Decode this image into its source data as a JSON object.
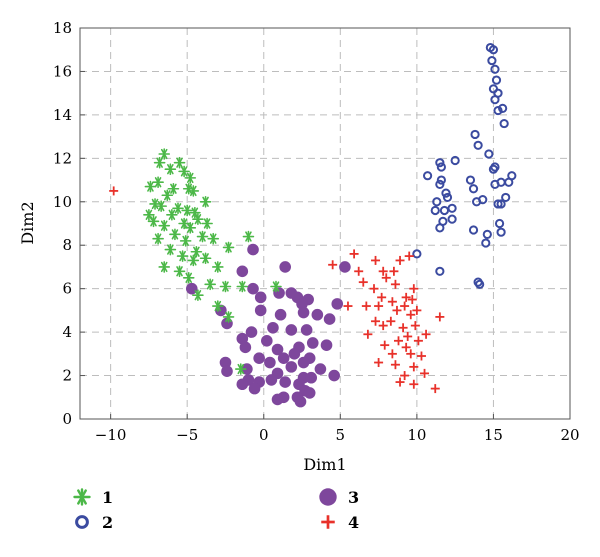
{
  "chart_data": {
    "type": "scatter",
    "xlabel": "Dim1",
    "ylabel": "Dim2",
    "xlim": [
      -12,
      20
    ],
    "ylim": [
      0,
      18
    ],
    "xticks": [
      -10,
      -5,
      0,
      5,
      10,
      15,
      20
    ],
    "yticks": [
      0,
      2,
      4,
      6,
      8,
      10,
      12,
      14,
      16,
      18
    ],
    "grid": true,
    "legend_position": "bottom",
    "series": [
      {
        "name": "1",
        "marker": "asterisk",
        "color": "#4CB848",
        "points": [
          [
            -6.5,
            12.2
          ],
          [
            -6.8,
            11.8
          ],
          [
            -5.5,
            11.8
          ],
          [
            -6.1,
            11.5
          ],
          [
            -5.2,
            11.4
          ],
          [
            -4.8,
            11.1
          ],
          [
            -6.9,
            10.9
          ],
          [
            -7.4,
            10.7
          ],
          [
            -5.9,
            10.6
          ],
          [
            -4.9,
            10.6
          ],
          [
            -4.6,
            10.5
          ],
          [
            -6.3,
            10.3
          ],
          [
            -3.8,
            10.0
          ],
          [
            -7.1,
            9.9
          ],
          [
            -6.7,
            9.8
          ],
          [
            -5.6,
            9.7
          ],
          [
            -5.0,
            9.6
          ],
          [
            -4.5,
            9.5
          ],
          [
            -7.5,
            9.4
          ],
          [
            -6.0,
            9.4
          ],
          [
            -4.3,
            9.2
          ],
          [
            -7.2,
            9.1
          ],
          [
            -5.2,
            9.0
          ],
          [
            -3.7,
            9.0
          ],
          [
            -6.5,
            8.9
          ],
          [
            -4.8,
            8.8
          ],
          [
            -5.8,
            8.5
          ],
          [
            -4.0,
            8.4
          ],
          [
            -6.9,
            8.3
          ],
          [
            -3.3,
            8.3
          ],
          [
            -5.1,
            8.2
          ],
          [
            -2.3,
            7.9
          ],
          [
            -6.1,
            7.8
          ],
          [
            -4.4,
            7.7
          ],
          [
            -5.3,
            7.5
          ],
          [
            -3.8,
            7.4
          ],
          [
            -4.6,
            7.3
          ],
          [
            -6.5,
            7.0
          ],
          [
            -3.0,
            7.0
          ],
          [
            -5.5,
            6.8
          ],
          [
            -4.9,
            6.5
          ],
          [
            -3.5,
            6.2
          ],
          [
            -2.5,
            6.1
          ],
          [
            -1.4,
            6.1
          ],
          [
            -4.3,
            5.7
          ],
          [
            -3.0,
            5.2
          ],
          [
            -2.3,
            4.7
          ],
          [
            -1.0,
            8.4
          ],
          [
            -1.5,
            2.3
          ],
          [
            0.8,
            6.1
          ]
        ]
      },
      {
        "name": "2",
        "marker": "circle-open",
        "color": "#3B4BA0",
        "points": [
          [
            14.8,
            17.1
          ],
          [
            15.0,
            17.0
          ],
          [
            14.9,
            16.5
          ],
          [
            15.1,
            16.1
          ],
          [
            15.2,
            15.6
          ],
          [
            15.0,
            15.2
          ],
          [
            15.3,
            15.0
          ],
          [
            15.1,
            14.7
          ],
          [
            15.6,
            14.3
          ],
          [
            15.3,
            14.2
          ],
          [
            15.7,
            13.6
          ],
          [
            13.8,
            13.1
          ],
          [
            14.0,
            12.6
          ],
          [
            14.7,
            12.2
          ],
          [
            12.5,
            11.9
          ],
          [
            11.6,
            11.6
          ],
          [
            11.5,
            11.8
          ],
          [
            15.0,
            11.5
          ],
          [
            15.1,
            11.6
          ],
          [
            10.7,
            11.2
          ],
          [
            11.6,
            11.0
          ],
          [
            13.5,
            11.0
          ],
          [
            16.2,
            11.2
          ],
          [
            11.5,
            10.8
          ],
          [
            15.5,
            10.9
          ],
          [
            16.0,
            10.9
          ],
          [
            11.9,
            10.4
          ],
          [
            15.1,
            10.8
          ],
          [
            13.7,
            10.6
          ],
          [
            12.0,
            10.2
          ],
          [
            11.3,
            10.0
          ],
          [
            14.3,
            10.1
          ],
          [
            15.8,
            10.2
          ],
          [
            11.8,
            9.6
          ],
          [
            13.9,
            10.0
          ],
          [
            15.3,
            9.9
          ],
          [
            11.2,
            9.6
          ],
          [
            12.3,
            9.7
          ],
          [
            15.5,
            9.9
          ],
          [
            11.7,
            9.1
          ],
          [
            12.3,
            9.2
          ],
          [
            15.4,
            9.0
          ],
          [
            11.5,
            8.8
          ],
          [
            13.7,
            8.7
          ],
          [
            14.6,
            8.5
          ],
          [
            15.5,
            8.6
          ],
          [
            14.5,
            8.1
          ],
          [
            10.0,
            7.6
          ],
          [
            11.5,
            6.8
          ],
          [
            14.0,
            6.3
          ],
          [
            14.1,
            6.2
          ]
        ]
      },
      {
        "name": "3",
        "marker": "circle-filled",
        "color": "#7E479C",
        "points": [
          [
            -0.7,
            7.8
          ],
          [
            1.4,
            7.0
          ],
          [
            -1.4,
            6.8
          ],
          [
            -4.7,
            6.0
          ],
          [
            -0.7,
            6.0
          ],
          [
            1.0,
            5.8
          ],
          [
            -0.2,
            5.6
          ],
          [
            2.2,
            5.6
          ],
          [
            1.8,
            5.8
          ],
          [
            2.9,
            5.5
          ],
          [
            2.5,
            5.3
          ],
          [
            4.8,
            5.3
          ],
          [
            5.3,
            7.0
          ],
          [
            -2.8,
            5.0
          ],
          [
            -0.2,
            5.0
          ],
          [
            1.1,
            4.8
          ],
          [
            2.6,
            4.9
          ],
          [
            3.5,
            4.8
          ],
          [
            4.3,
            4.6
          ],
          [
            -2.4,
            4.4
          ],
          [
            0.6,
            4.2
          ],
          [
            -0.8,
            4.0
          ],
          [
            1.8,
            4.1
          ],
          [
            2.8,
            4.1
          ],
          [
            -1.4,
            3.7
          ],
          [
            0.2,
            3.6
          ],
          [
            2.3,
            3.3
          ],
          [
            3.2,
            3.5
          ],
          [
            -1.2,
            3.3
          ],
          [
            0.9,
            3.2
          ],
          [
            2.0,
            3.0
          ],
          [
            4.1,
            3.4
          ],
          [
            -0.3,
            2.8
          ],
          [
            1.3,
            2.8
          ],
          [
            3.0,
            2.8
          ],
          [
            0.4,
            2.6
          ],
          [
            2.6,
            2.6
          ],
          [
            -2.5,
            2.6
          ],
          [
            1.8,
            2.4
          ],
          [
            3.7,
            2.3
          ],
          [
            -1.1,
            2.3
          ],
          [
            0.9,
            2.1
          ],
          [
            4.6,
            2.0
          ],
          [
            2.6,
            1.9
          ],
          [
            3.1,
            1.9
          ],
          [
            -1.0,
            1.8
          ],
          [
            0.5,
            1.8
          ],
          [
            -0.3,
            1.7
          ],
          [
            1.4,
            1.7
          ],
          [
            2.3,
            1.6
          ],
          [
            -1.4,
            1.6
          ],
          [
            -0.6,
            1.4
          ],
          [
            2.7,
            1.3
          ],
          [
            1.3,
            1.0
          ],
          [
            2.2,
            1.0
          ],
          [
            0.9,
            0.9
          ],
          [
            2.4,
            0.8
          ],
          [
            3.0,
            1.2
          ],
          [
            -2.4,
            2.2
          ]
        ]
      },
      {
        "name": "4",
        "marker": "plus",
        "color": "#E8312A",
        "points": [
          [
            -9.8,
            10.5
          ],
          [
            9.5,
            7.5
          ],
          [
            8.9,
            7.3
          ],
          [
            5.9,
            7.6
          ],
          [
            7.3,
            7.3
          ],
          [
            4.5,
            7.1
          ],
          [
            6.2,
            6.8
          ],
          [
            7.8,
            6.8
          ],
          [
            8.5,
            6.8
          ],
          [
            8.0,
            6.5
          ],
          [
            6.5,
            6.3
          ],
          [
            7.2,
            6.0
          ],
          [
            8.6,
            6.2
          ],
          [
            9.8,
            6.0
          ],
          [
            7.7,
            5.6
          ],
          [
            8.4,
            5.4
          ],
          [
            9.3,
            5.6
          ],
          [
            9.7,
            5.5
          ],
          [
            5.5,
            5.2
          ],
          [
            6.7,
            5.2
          ],
          [
            7.5,
            5.2
          ],
          [
            9.2,
            5.2
          ],
          [
            10.0,
            5.0
          ],
          [
            8.7,
            5.0
          ],
          [
            9.6,
            4.8
          ],
          [
            11.5,
            4.7
          ],
          [
            7.3,
            4.5
          ],
          [
            8.3,
            4.5
          ],
          [
            7.8,
            4.3
          ],
          [
            9.1,
            4.2
          ],
          [
            9.9,
            4.3
          ],
          [
            6.8,
            3.9
          ],
          [
            9.4,
            3.8
          ],
          [
            10.6,
            3.9
          ],
          [
            7.9,
            3.4
          ],
          [
            8.8,
            3.6
          ],
          [
            10.1,
            3.6
          ],
          [
            9.3,
            3.3
          ],
          [
            8.4,
            3.0
          ],
          [
            9.6,
            3.0
          ],
          [
            10.3,
            2.9
          ],
          [
            7.5,
            2.6
          ],
          [
            8.6,
            2.5
          ],
          [
            9.8,
            2.4
          ],
          [
            9.2,
            2.0
          ],
          [
            10.5,
            2.1
          ],
          [
            8.9,
            1.7
          ],
          [
            9.8,
            1.6
          ],
          [
            11.2,
            1.4
          ]
        ]
      }
    ]
  }
}
